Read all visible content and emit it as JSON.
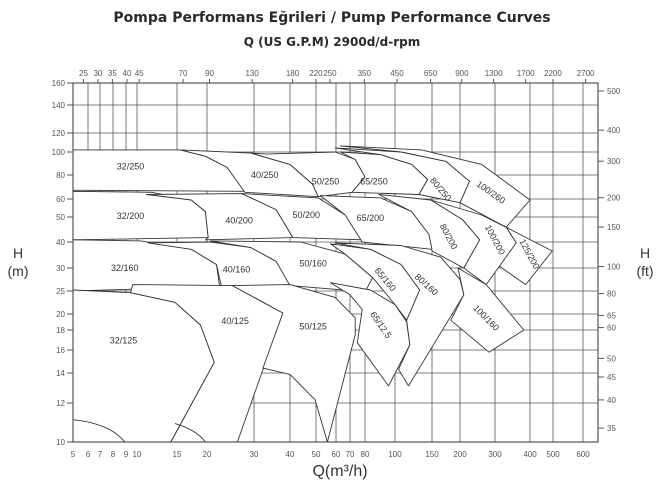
{
  "chart_data": {
    "type": "area",
    "title": "Pompa Performans Eğrileri   /  Pump Performance Curves",
    "subtitle": "Q (US G.P.M) 2900d/d-rpm",
    "xlabel": "Q(m³/h)",
    "ylabel_left": [
      "H",
      "(m)"
    ],
    "ylabel_right": [
      "H",
      "(ft)"
    ],
    "x_ticks": [
      5,
      6,
      7,
      8,
      9,
      10,
      15,
      20,
      30,
      40,
      50,
      60,
      70,
      80,
      100,
      150,
      200,
      300,
      400,
      500,
      600
    ],
    "y_ticks": [
      10,
      12,
      14,
      16,
      18,
      20,
      25,
      30,
      40,
      50,
      60,
      80,
      100,
      120,
      140,
      160
    ],
    "top_ticks_gpm": [
      25,
      30,
      35,
      40,
      45,
      70,
      90,
      130,
      180,
      220,
      250,
      350,
      450,
      650,
      900,
      1300,
      1700,
      2200,
      2700
    ],
    "right_ticks_ft": [
      35,
      40,
      45,
      50,
      60,
      65,
      80,
      100,
      150,
      200,
      300,
      400,
      500
    ],
    "xlim": [
      5,
      600
    ],
    "ylim": [
      10,
      160
    ],
    "grid": true,
    "regions": [
      {
        "name": "32/250",
        "label_at": [
          9.4,
          87
        ],
        "polygon": [
          [
            5,
            102
          ],
          [
            15.5,
            102
          ],
          [
            19.7,
            96
          ],
          [
            23.8,
            86
          ],
          [
            27.7,
            65.8
          ],
          [
            5,
            66.7
          ]
        ]
      },
      {
        "name": "40/250",
        "label_at": [
          32.7,
          80
        ],
        "polygon": [
          [
            15.5,
            102
          ],
          [
            29.1,
            99
          ],
          [
            40,
            88.7
          ],
          [
            48.5,
            71.7
          ],
          [
            51,
            61.7
          ],
          [
            27.7,
            65
          ],
          [
            23.8,
            86
          ],
          [
            19.7,
            96
          ]
        ]
      },
      {
        "name": "50/250",
        "label_at": [
          54.5,
          74
        ],
        "polygon": [
          [
            33,
            98
          ],
          [
            59.5,
            100
          ],
          [
            73.3,
            93
          ],
          [
            80,
            78.3
          ],
          [
            71.3,
            65
          ],
          [
            51,
            61.7
          ],
          [
            48.5,
            71.7
          ],
          [
            40,
            88.7
          ],
          [
            29.1,
            99
          ]
        ]
      },
      {
        "name": "100/260",
        "label_at": [
          286,
          65
        ],
        "polygon": [
          [
            62.9,
            106
          ],
          [
            134,
            102
          ],
          [
            257,
            88.7
          ],
          [
            400,
            59.4
          ],
          [
            329,
            45.6
          ],
          [
            200,
            57.8
          ],
          [
            223,
            74.2
          ],
          [
            173,
            91.3
          ],
          [
            106.8,
            100
          ]
        ]
      },
      {
        "name": "80/250",
        "label_at": [
          164,
          67.5
        ],
        "polygon": [
          [
            59.5,
            104
          ],
          [
            106.8,
            100
          ],
          [
            173,
            91.3
          ],
          [
            223,
            74.2
          ],
          [
            200,
            57.8
          ],
          [
            130,
            63.3
          ],
          [
            143,
            75.8
          ],
          [
            120,
            88.7
          ],
          [
            90,
            97.4
          ]
        ]
      },
      {
        "name": "65/250",
        "label_at": [
          85.5,
          74
        ],
        "polygon": [
          [
            62.9,
            100
          ],
          [
            90,
            97.4
          ],
          [
            120,
            88.7
          ],
          [
            143,
            75.8
          ],
          [
            130,
            63.3
          ],
          [
            71.3,
            65
          ],
          [
            80,
            78.3
          ],
          [
            73.3,
            93
          ]
        ]
      },
      {
        "name": "32/200",
        "label_at": [
          9.4,
          50.5
        ],
        "polygon": [
          [
            5,
            65.8
          ],
          [
            11.6,
            65
          ],
          [
            17.2,
            59.4
          ],
          [
            19.7,
            52.8
          ],
          [
            20.2,
            41.6
          ],
          [
            5,
            40.8
          ]
        ]
      },
      {
        "name": "40/200",
        "label_at": [
          26.4,
          48.4
        ],
        "polygon": [
          [
            11,
            63.3
          ],
          [
            27,
            64
          ],
          [
            35.8,
            53.9
          ],
          [
            41,
            41.6
          ],
          [
            19.7,
            40.8
          ],
          [
            20.2,
            41.6
          ],
          [
            19.7,
            52.8
          ],
          [
            17.2,
            59.4
          ]
        ]
      },
      {
        "name": "50/200",
        "label_at": [
          46,
          51
        ],
        "polygon": [
          [
            27,
            64
          ],
          [
            51,
            60.8
          ],
          [
            66.4,
            51
          ],
          [
            78,
            40.8
          ],
          [
            41,
            41.6
          ],
          [
            35.8,
            53.9
          ]
        ]
      },
      {
        "name": "125/200",
        "label_at": [
          398,
          35
        ],
        "polygon": [
          [
            329,
            45.6
          ],
          [
            496,
            36.2
          ],
          [
            386,
            26.3
          ],
          [
            309,
            30.8
          ],
          [
            357,
            39.6
          ]
        ]
      },
      {
        "name": "100/200",
        "label_at": [
          300,
          40.8
        ],
        "polygon": [
          [
            148,
            59.4
          ],
          [
            257,
            51
          ],
          [
            329,
            45.6
          ],
          [
            357,
            39.6
          ],
          [
            271,
            26.3
          ],
          [
            209,
            30
          ],
          [
            251,
            40.8
          ],
          [
            206,
            48.8
          ]
        ]
      },
      {
        "name": "80/200",
        "label_at": [
          178,
          42
        ],
        "polygon": [
          [
            88.7,
            63.3
          ],
          [
            148,
            59.4
          ],
          [
            206,
            48.8
          ],
          [
            251,
            40.8
          ],
          [
            209,
            30
          ],
          [
            150,
            36.2
          ],
          [
            145,
            42.8
          ],
          [
            120,
            52.8
          ]
        ]
      },
      {
        "name": "65/200",
        "label_at": [
          83.3,
          49.6
        ],
        "polygon": [
          [
            52,
            62.5
          ],
          [
            90,
            60.8
          ],
          [
            120,
            52.8
          ],
          [
            145,
            42.8
          ],
          [
            150,
            36.9
          ],
          [
            78,
            40
          ],
          [
            66.4,
            51
          ]
        ]
      },
      {
        "name": "32/160",
        "label_at": [
          8.9,
          30
        ],
        "polygon": [
          [
            5,
            40.8
          ],
          [
            10.4,
            40.4
          ],
          [
            17.2,
            36.9
          ],
          [
            21.7,
            31.2
          ],
          [
            22.3,
            25.9
          ],
          [
            5,
            25
          ]
        ]
      },
      {
        "name": "40/160",
        "label_at": [
          25.8,
          29.6
        ],
        "polygon": [
          [
            11.2,
            39.6
          ],
          [
            20.6,
            40
          ],
          [
            29.1,
            37.7
          ],
          [
            35.8,
            32.3
          ],
          [
            40,
            26.3
          ],
          [
            22.8,
            25.2
          ],
          [
            21.7,
            31.2
          ],
          [
            17.2,
            36.9
          ]
        ]
      },
      {
        "name": "50/160",
        "label_at": [
          48.8,
          31.6
        ],
        "polygon": [
          [
            20.6,
            40.4
          ],
          [
            43.8,
            40
          ],
          [
            66.4,
            35
          ],
          [
            84.7,
            27.8
          ],
          [
            80,
            24.8
          ],
          [
            40,
            26.1
          ],
          [
            35.8,
            32.3
          ],
          [
            29.1,
            37.7
          ]
        ]
      },
      {
        "name": "100/160",
        "label_at": [
          271,
          19.5
        ],
        "polygon": [
          [
            196,
            30
          ],
          [
            271,
            26.3
          ],
          [
            380,
            18
          ],
          [
            280,
            15.8
          ],
          [
            182,
            19.2
          ],
          [
            209,
            24.1
          ]
        ]
      },
      {
        "name": "80/160",
        "label_at": [
          141,
          26.3
        ],
        "polygon": [
          [
            59.5,
            39.6
          ],
          [
            106.8,
            38.5
          ],
          [
            164,
            33.8
          ],
          [
            200,
            27.4
          ],
          [
            209,
            24.1
          ],
          [
            116,
            13.1
          ],
          [
            104,
            14.3
          ],
          [
            117.6,
            16.5
          ],
          [
            113.5,
            19.2
          ],
          [
            131,
            25.2
          ],
          [
            106.8,
            31.2
          ],
          [
            83.3,
            36.9
          ]
        ]
      },
      {
        "name": "65/160",
        "label_at": [
          93,
          27.4
        ],
        "polygon": [
          [
            57,
            39.2
          ],
          [
            83.3,
            36.9
          ],
          [
            106.8,
            31.2
          ],
          [
            131,
            25.2
          ],
          [
            113.5,
            19.2
          ],
          [
            100,
            21.9
          ],
          [
            84.7,
            27.8
          ],
          [
            66.4,
            35
          ]
        ]
      },
      {
        "name": "65/12.5",
        "label_at": [
          90,
          18.6
        ],
        "polygon": [
          [
            57,
            26.7
          ],
          [
            83.3,
            25.2
          ],
          [
            100,
            21.9
          ],
          [
            113.5,
            19
          ],
          [
            117.6,
            16.5
          ],
          [
            95.3,
            13.1
          ],
          [
            74.7,
            16.7
          ],
          [
            78,
            20.9
          ],
          [
            70,
            24.1
          ]
        ]
      },
      {
        "name": "32/125",
        "label_at": [
          8.8,
          16.9
        ],
        "polygon": [
          [
            5,
            25.2
          ],
          [
            9.4,
            24.6
          ],
          [
            14.7,
            22.4
          ],
          [
            18.8,
            18.6
          ],
          [
            21.3,
            14.9
          ],
          [
            14.1,
            10
          ],
          [
            5,
            10
          ]
        ]
      },
      {
        "name": "40/125",
        "label_at": [
          25.5,
          19.1
        ],
        "polygon": [
          [
            9.6,
            26.3
          ],
          [
            24.9,
            26.1
          ],
          [
            37.8,
            20.2
          ],
          [
            26,
            10
          ],
          [
            14.1,
            10
          ],
          [
            21.3,
            14.9
          ],
          [
            18.8,
            18.6
          ],
          [
            14.7,
            22.4
          ],
          [
            9.4,
            24.6
          ]
        ]
      },
      {
        "name": "50/125",
        "label_at": [
          48.8,
          18.4
        ],
        "polygon": [
          [
            24.9,
            26.1
          ],
          [
            40,
            26.3
          ],
          [
            59.5,
            23.5
          ],
          [
            73.3,
            19.5
          ],
          [
            73.3,
            17.5
          ],
          [
            55.5,
            10
          ],
          [
            49.6,
            12.2
          ],
          [
            40,
            13.9
          ],
          [
            32.2,
            14.4
          ],
          [
            37.8,
            20.2
          ]
        ]
      }
    ],
    "extra_curves": [
      [
        [
          5,
          11.1
        ],
        [
          7.8,
          10.9
        ],
        [
          8.9,
          10
        ]
      ],
      [
        [
          14.7,
          10.9
        ],
        [
          18,
          10.6
        ],
        [
          19.7,
          10
        ]
      ]
    ],
    "colors": {
      "line": "#333333",
      "grid": "#555555",
      "text": "#444444"
    }
  }
}
